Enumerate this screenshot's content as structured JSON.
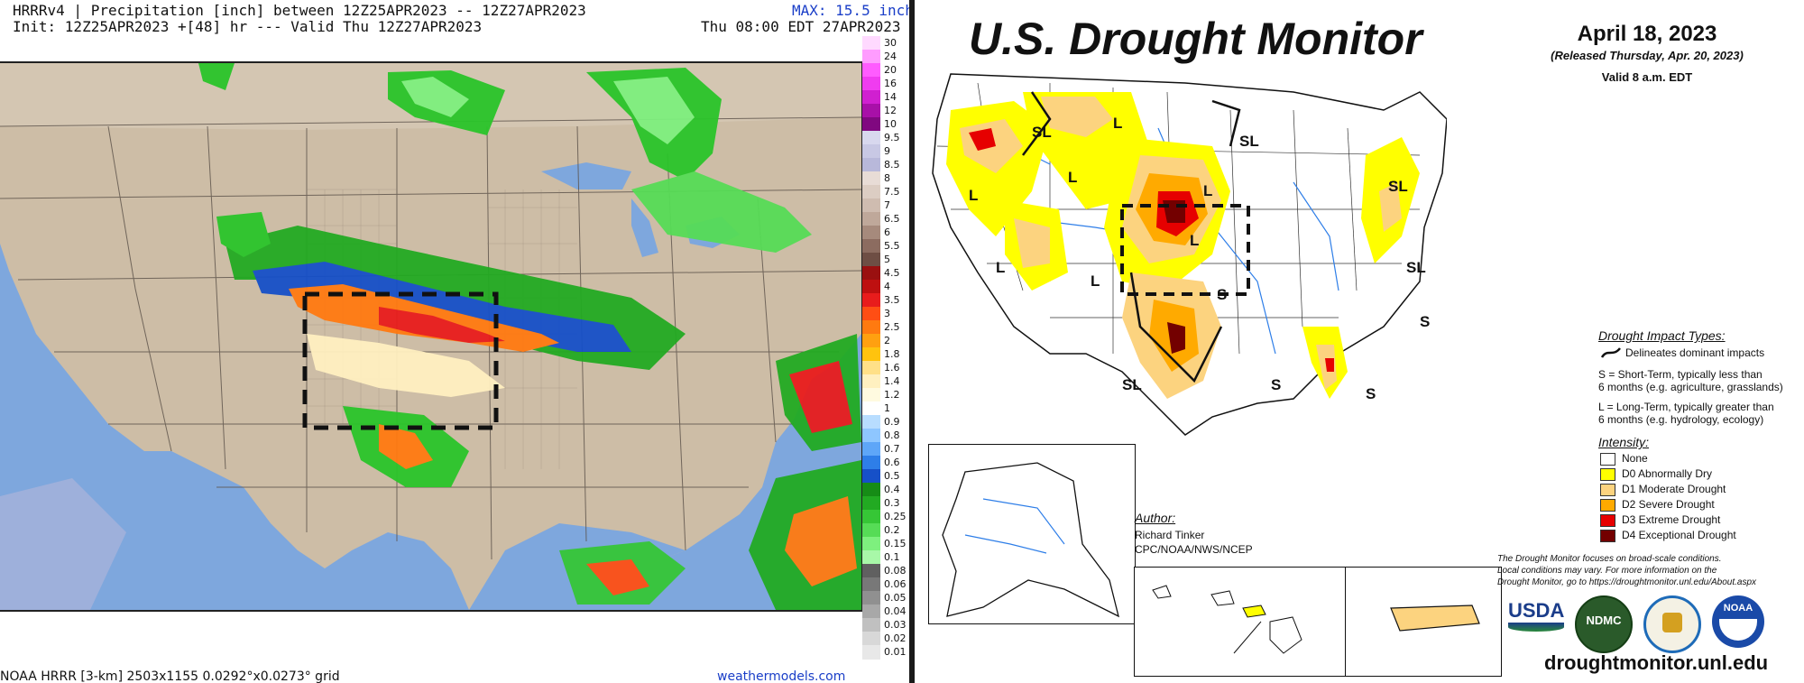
{
  "hrrr": {
    "title": "HRRRv4 | Precipitation [inch] between 12Z25APR2023 -- 12Z27APR2023",
    "init": "Init: 12Z25APR2023 +[48] hr --- Valid Thu 12Z27APR2023",
    "max": "MAX: 15.5 inch",
    "valid": "Thu 08:00 EDT 27APR2023",
    "grid_note": "NOAA HRRR [3-km] 2503x1155 0.0292°x0.0273° grid",
    "credit": "weathermodels.com",
    "colorbar": {
      "labels": [
        "30",
        "24",
        "20",
        "16",
        "14",
        "12",
        "10",
        "9.5",
        "9",
        "8.5",
        "8",
        "7.5",
        "7",
        "6.5",
        "6",
        "5.5",
        "5",
        "4.5",
        "4",
        "3.5",
        "3",
        "2.5",
        "2",
        "1.8",
        "1.6",
        "1.4",
        "1.2",
        "1",
        "0.9",
        "0.8",
        "0.7",
        "0.6",
        "0.5",
        "0.4",
        "0.3",
        "0.25",
        "0.2",
        "0.15",
        "0.1",
        "0.08",
        "0.06",
        "0.05",
        "0.04",
        "0.03",
        "0.02",
        "0.01"
      ],
      "colors": [
        "#ffd9ff",
        "#ff9cff",
        "#ff5cff",
        "#f03cf0",
        "#d020d0",
        "#a810a8",
        "#800880",
        "#d8d8ee",
        "#c8c8e4",
        "#b8b8da",
        "#e8dcd6",
        "#dccdc3",
        "#cfbcb0",
        "#bfa89a",
        "#a68a7c",
        "#8c6c60",
        "#6e4e44",
        "#9a1010",
        "#be1010",
        "#e81c1c",
        "#ff4e14",
        "#ff7a10",
        "#ffa010",
        "#ffc30e",
        "#ffe088",
        "#fff0c0",
        "#fffae0",
        "#ffffff",
        "#b8ddff",
        "#8ec6ff",
        "#5ea6f8",
        "#2e7ee8",
        "#1650c8",
        "#168c16",
        "#22aa22",
        "#36c636",
        "#56dc56",
        "#7ef07e",
        "#a8f8a8",
        "#606060",
        "#787878",
        "#909090",
        "#a8a8a8",
        "#c0c0c0",
        "#d8d8d8",
        "#e8e8e8"
      ]
    }
  },
  "usdm": {
    "title": "U.S. Drought Monitor",
    "date": "April 18, 2023",
    "released": "(Released Thursday, Apr. 20, 2023)",
    "valid": "Valid 8 a.m. EDT",
    "map_labels": [
      "SL",
      "L",
      "SL",
      "L",
      "L",
      "L",
      "L",
      "L",
      "S",
      "SL",
      "SL",
      "SL",
      "S",
      "S",
      "L",
      "S"
    ],
    "impact_heading": "Drought Impact Types:",
    "impact_line": "Delineates dominant impacts",
    "short_term_1": "S = Short-Term, typically less than",
    "short_term_2": "6 months (e.g. agriculture, grasslands)",
    "long_term_1": "L = Long-Term, typically greater than",
    "long_term_2": "6 months (e.g. hydrology, ecology)",
    "intensity_heading": "Intensity:",
    "intensity": [
      {
        "label": "None",
        "color": "#ffffff"
      },
      {
        "label": "D0 Abnormally Dry",
        "color": "#ffff00"
      },
      {
        "label": "D1 Moderate Drought",
        "color": "#fcd37f"
      },
      {
        "label": "D2 Severe Drought",
        "color": "#ffaa00"
      },
      {
        "label": "D3 Extreme Drought",
        "color": "#e60000"
      },
      {
        "label": "D4 Exceptional Drought",
        "color": "#730000"
      }
    ],
    "author_heading": "Author:",
    "author_name": "Richard Tinker",
    "author_org": "CPC/NOAA/NWS/NCEP",
    "note_1": "The Drought Monitor focuses on broad-scale conditions.",
    "note_2": "Local conditions may vary. For more information on the",
    "note_3": "Drought Monitor, go to https://droughtmonitor.unl.edu/About.aspx",
    "logos": {
      "usda": "USDA",
      "ndmc": "NDMC",
      "noaa": "NOAA"
    },
    "url": "droughtmonitor.unl.edu"
  }
}
